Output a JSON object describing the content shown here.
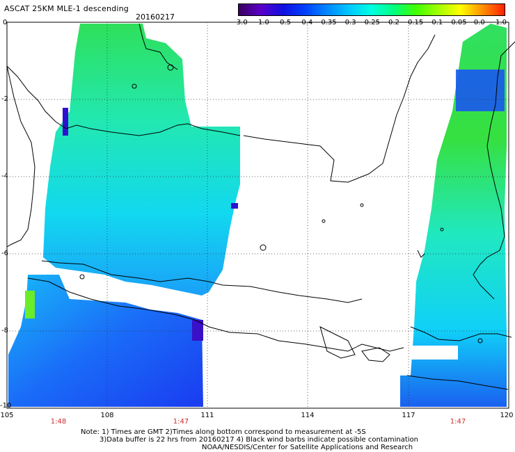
{
  "header": {
    "title": "ASCAT 25KM MLE-1 descending",
    "date": "20160217"
  },
  "colorbar": {
    "labels": [
      "-3.0",
      "-1.0",
      "-0.5",
      "-0.4",
      "-0.35",
      "-0.3",
      "-0.25",
      "-0.2",
      "-0.15",
      "-0.1",
      "-0.05",
      "0.0",
      "1.0"
    ],
    "colors": [
      "#3a0060",
      "#5a00c8",
      "#1010e0",
      "#0040ff",
      "#0088ff",
      "#00c8ff",
      "#00ffe0",
      "#00ff80",
      "#40ff00",
      "#a0ff00",
      "#ffff00",
      "#ff9000",
      "#ff2000"
    ]
  },
  "map": {
    "lat_labels": [
      "0",
      "-2",
      "-4",
      "-6",
      "-8",
      "-10"
    ],
    "lon_labels": [
      "105",
      "108",
      "111",
      "114",
      "117",
      "120"
    ],
    "times": [
      "1:48",
      "1:47",
      "1:47"
    ]
  },
  "notes": {
    "line1": "Note: 1) Times are GMT 2)Times along bottom correspond to measurement at -5S",
    "line2": "3)Data buffer is 22 hrs from 20160217 4) Black wind barbs indicate possible contamination",
    "line3": "NOAA/NESDIS/Center for Satellite Applications and Research"
  }
}
